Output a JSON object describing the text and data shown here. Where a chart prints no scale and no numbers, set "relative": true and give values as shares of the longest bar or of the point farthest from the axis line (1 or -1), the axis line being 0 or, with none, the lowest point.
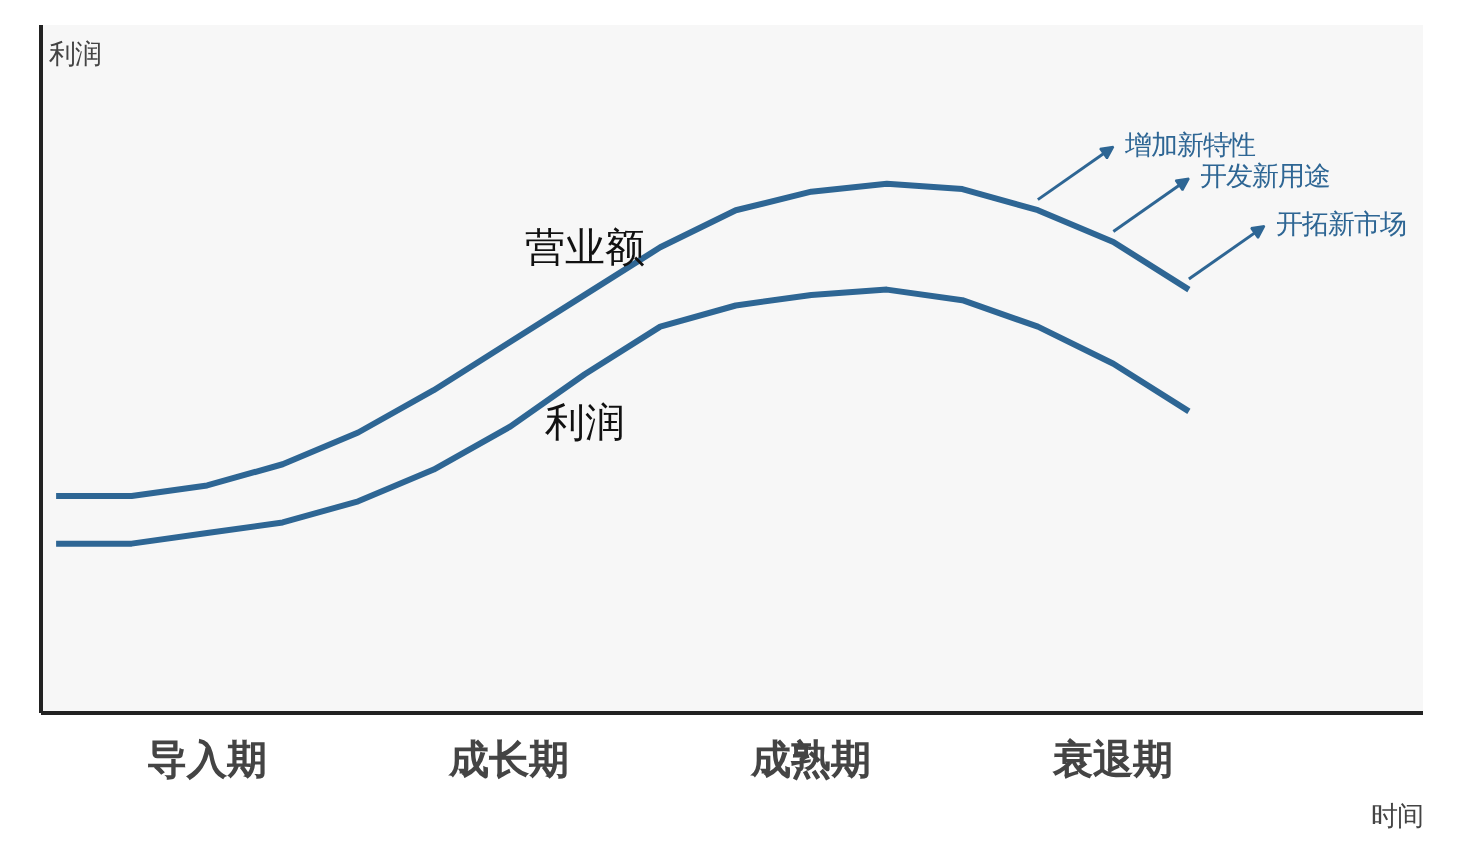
{
  "chart_data": {
    "type": "line",
    "relative": true,
    "xlabel": "时间",
    "ylabel": "利润",
    "categories": [
      null,
      null,
      "导入期",
      null,
      null,
      null,
      "成长期",
      null,
      null,
      null,
      "成熟期",
      null,
      null,
      null,
      "衰退期",
      null,
      null,
      null,
      null
    ],
    "legend": false,
    "grid": false,
    "marker": "none",
    "line_style": "solid",
    "series": [
      {
        "name": "营业额",
        "color": "#2e6694",
        "values": [
          0.41,
          0.41,
          0.43,
          0.47,
          0.53,
          0.61,
          0.7,
          0.79,
          0.88,
          0.95,
          0.985,
          1.0,
          0.99,
          0.95,
          0.89,
          0.8,
          null,
          null,
          null
        ]
      },
      {
        "name": "利润",
        "color": "#2e6694",
        "values": [
          0.32,
          0.32,
          0.34,
          0.36,
          0.4,
          0.46,
          0.54,
          0.64,
          0.73,
          0.77,
          0.79,
          0.8,
          0.78,
          0.73,
          0.66,
          0.57,
          null,
          null,
          null
        ]
      }
    ],
    "annotations": [
      "增加新特性",
      "开发新用途",
      "开拓新市场"
    ]
  }
}
